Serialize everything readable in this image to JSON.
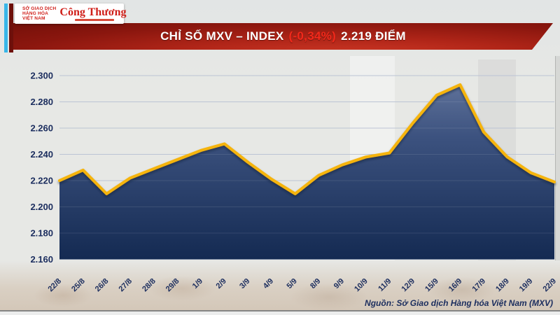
{
  "colors": {
    "accent_cyan": "#38b6e8",
    "accent_dark_red": "#6e100b",
    "banner_red": "#a82014",
    "change_red": "#f3291b",
    "axis_navy": "#1b2d5e",
    "grid": "#b4bed0",
    "line_gold": "#f5b40d",
    "fill_top": "#5e7199",
    "fill_mid": "#3c527f",
    "fill_bottom": "#142a52"
  },
  "logos": {
    "mxv": {
      "icon": "mxv-chevrons-icon",
      "line1": "SỞ GIAO DỊCH",
      "line2": "HÀNG HÓA",
      "line3": "VIỆT NAM"
    },
    "congthuong": {
      "text": "Công Thương"
    }
  },
  "banner": {
    "title_prefix": "CHỈ SỐ MXV – INDEX ",
    "change": "(-0,34%)",
    "value_suffix": " 2.219 ĐIỂM"
  },
  "chart_data": {
    "type": "area",
    "title": "CHỈ SỐ MXV – INDEX (-0,34%) 2.219 ĐIỂM",
    "x": [
      "22/8",
      "25/8",
      "26/8",
      "27/8",
      "28/8",
      "29/8",
      "1/9",
      "2/9",
      "3/9",
      "4/9",
      "5/9",
      "8/9",
      "9/9",
      "10/9",
      "11/9",
      "12/9",
      "15/9",
      "16/9",
      "17/9",
      "18/9",
      "19/9",
      "22/9"
    ],
    "values": [
      2220,
      2228,
      2210,
      2222,
      2229,
      2236,
      2243,
      2248,
      2234,
      2221,
      2210,
      2224,
      2232,
      2238,
      2241,
      2264,
      2285,
      2293,
      2257,
      2238,
      2226,
      2219
    ],
    "ylim": [
      2160,
      2300
    ],
    "ytick_step": 20,
    "ytick_labels": [
      "2.300",
      "2.280",
      "2.260",
      "2.240",
      "2.220",
      "2.200",
      "2.180",
      "2.160"
    ],
    "number_format": "vi-VN (dot as thousands separator, 2.219 = 2219 points)",
    "unit": "điểm",
    "grid": true,
    "legend": "none",
    "last_value": 2219,
    "change_pct": "-0,34%"
  },
  "footer": {
    "source": "Nguồn: Sở Giao dịch Hàng hóa Việt Nam (MXV)"
  }
}
